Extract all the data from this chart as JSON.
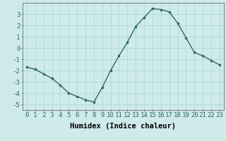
{
  "x": [
    0,
    1,
    2,
    3,
    4,
    5,
    6,
    7,
    8,
    9,
    10,
    11,
    12,
    13,
    14,
    15,
    16,
    17,
    18,
    19,
    20,
    21,
    22,
    23
  ],
  "y": [
    -1.7,
    -1.9,
    -2.3,
    -2.7,
    -3.3,
    -4.0,
    -4.3,
    -4.6,
    -4.8,
    -3.5,
    -2.0,
    -0.7,
    0.5,
    1.9,
    2.7,
    3.5,
    3.4,
    3.2,
    2.2,
    0.9,
    -0.4,
    -0.7,
    -1.1,
    -1.5
  ],
  "line_color": "#2e6b5e",
  "marker": "s",
  "marker_size": 2.0,
  "bg_color": "#ceeaea",
  "grid_color": "#b0d8d8",
  "xlabel": "Humidex (Indice chaleur)",
  "xlim": [
    -0.5,
    23.5
  ],
  "ylim": [
    -5.5,
    4.0
  ],
  "yticks": [
    -5,
    -4,
    -3,
    -2,
    -1,
    0,
    1,
    2,
    3
  ],
  "xticks": [
    0,
    1,
    2,
    3,
    4,
    5,
    6,
    7,
    8,
    9,
    10,
    11,
    12,
    13,
    14,
    15,
    16,
    17,
    18,
    19,
    20,
    21,
    22,
    23
  ],
  "tick_label_fontsize": 6.5,
  "xlabel_fontsize": 7.5,
  "linewidth": 1.0
}
